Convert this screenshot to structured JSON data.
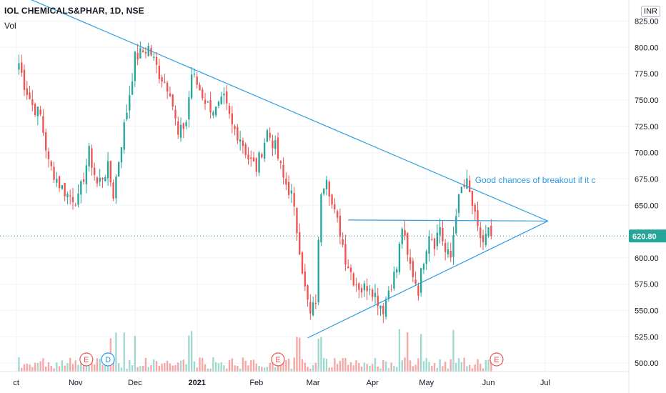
{
  "header": {
    "symbol": "IOL CHEMICALS&PHAR, 1D, NSE",
    "volume_label": "Vol",
    "currency": "INR"
  },
  "colors": {
    "up": "#26a69a",
    "down": "#ef5350",
    "up_volume": "#9fd9cf",
    "down_volume": "#f6a7a4",
    "trendline": "#2f9ce3",
    "price_line": "#26a69a",
    "axis_text": "#131722",
    "grid": "#f0f3fa",
    "badge_dividend": "#2196f3",
    "badge_earnings": "#ef5350"
  },
  "annotation": {
    "text": "Good chances of breakout if it c"
  },
  "last_price": {
    "label": "620.80",
    "value": 620.8
  },
  "chart_data": {
    "type": "candlestick",
    "y_range": [
      492,
      845
    ],
    "x_range_bars": [
      -7,
      226
    ],
    "y_ticks": [
      {
        "value": 500,
        "label": "500.00"
      },
      {
        "value": 525,
        "label": "525.00"
      },
      {
        "value": 550,
        "label": "550.00"
      },
      {
        "value": 575,
        "label": "575.00"
      },
      {
        "value": 600,
        "label": "600.00"
      },
      {
        "value": 650,
        "label": "650.00"
      },
      {
        "value": 675,
        "label": "675.00"
      },
      {
        "value": 700,
        "label": "700.00"
      },
      {
        "value": 725,
        "label": "725.00"
      },
      {
        "value": 750,
        "label": "750.00"
      },
      {
        "value": 775,
        "label": "775.00"
      },
      {
        "value": 800,
        "label": "800.00"
      },
      {
        "value": 825,
        "label": "825.00"
      }
    ],
    "x_ticks": [
      {
        "bar": -1,
        "label": "ct"
      },
      {
        "bar": 21,
        "label": "Nov"
      },
      {
        "bar": 43,
        "label": "Dec"
      },
      {
        "bar": 66,
        "label": "2021"
      },
      {
        "bar": 88,
        "label": "Feb"
      },
      {
        "bar": 109,
        "label": "Mar"
      },
      {
        "bar": 131,
        "label": "Apr"
      },
      {
        "bar": 151,
        "label": "May"
      },
      {
        "bar": 174,
        "label": "Jun"
      },
      {
        "bar": 195,
        "label": "Jul"
      }
    ],
    "events": [
      {
        "bar": 25,
        "label": "E",
        "kind": "earnings"
      },
      {
        "bar": 33,
        "label": "D",
        "kind": "dividend"
      },
      {
        "bar": 96,
        "label": "E",
        "kind": "earnings"
      },
      {
        "bar": 177,
        "label": "E",
        "kind": "earnings"
      }
    ],
    "waypoints": [
      {
        "bar": 0,
        "price": 785
      },
      {
        "bar": 2,
        "price": 765
      },
      {
        "bar": 5,
        "price": 745
      },
      {
        "bar": 8,
        "price": 735
      },
      {
        "bar": 11,
        "price": 690
      },
      {
        "bar": 15,
        "price": 670
      },
      {
        "bar": 18,
        "price": 660
      },
      {
        "bar": 22,
        "price": 655
      },
      {
        "bar": 26,
        "price": 700
      },
      {
        "bar": 29,
        "price": 670
      },
      {
        "bar": 33,
        "price": 685
      },
      {
        "bar": 35,
        "price": 660
      },
      {
        "bar": 38,
        "price": 710
      },
      {
        "bar": 40,
        "price": 740
      },
      {
        "bar": 43,
        "price": 790
      },
      {
        "bar": 48,
        "price": 800
      },
      {
        "bar": 52,
        "price": 775
      },
      {
        "bar": 56,
        "price": 760
      },
      {
        "bar": 59,
        "price": 715
      },
      {
        "bar": 62,
        "price": 730
      },
      {
        "bar": 64,
        "price": 775
      },
      {
        "bar": 67,
        "price": 760
      },
      {
        "bar": 70,
        "price": 745
      },
      {
        "bar": 73,
        "price": 740
      },
      {
        "bar": 76,
        "price": 750
      },
      {
        "bar": 79,
        "price": 725
      },
      {
        "bar": 82,
        "price": 715
      },
      {
        "bar": 85,
        "price": 695
      },
      {
        "bar": 88,
        "price": 685
      },
      {
        "bar": 92,
        "price": 720
      },
      {
        "bar": 95,
        "price": 705
      },
      {
        "bar": 98,
        "price": 675
      },
      {
        "bar": 101,
        "price": 660
      },
      {
        "bar": 104,
        "price": 610
      },
      {
        "bar": 106,
        "price": 570
      },
      {
        "bar": 108,
        "price": 545
      },
      {
        "bar": 110,
        "price": 560
      },
      {
        "bar": 112,
        "price": 665
      },
      {
        "bar": 114,
        "price": 680
      },
      {
        "bar": 116,
        "price": 650
      },
      {
        "bar": 119,
        "price": 625
      },
      {
        "bar": 121,
        "price": 600
      },
      {
        "bar": 124,
        "price": 580
      },
      {
        "bar": 127,
        "price": 570
      },
      {
        "bar": 130,
        "price": 575
      },
      {
        "bar": 133,
        "price": 560
      },
      {
        "bar": 135,
        "price": 552
      },
      {
        "bar": 137,
        "price": 570
      },
      {
        "bar": 140,
        "price": 590
      },
      {
        "bar": 142,
        "price": 630
      },
      {
        "bar": 144,
        "price": 600
      },
      {
        "bar": 146,
        "price": 585
      },
      {
        "bar": 148,
        "price": 570
      },
      {
        "bar": 150,
        "price": 600
      },
      {
        "bar": 152,
        "price": 625
      },
      {
        "bar": 154,
        "price": 615
      },
      {
        "bar": 156,
        "price": 630
      },
      {
        "bar": 158,
        "price": 605
      },
      {
        "bar": 160,
        "price": 600
      },
      {
        "bar": 162,
        "price": 645
      },
      {
        "bar": 164,
        "price": 665
      },
      {
        "bar": 166,
        "price": 670
      },
      {
        "bar": 168,
        "price": 650
      },
      {
        "bar": 170,
        "price": 625
      },
      {
        "bar": 172,
        "price": 615
      },
      {
        "bar": 174,
        "price": 625
      },
      {
        "bar": 175,
        "price": 620.8
      }
    ],
    "trendlines": [
      {
        "name": "upper-trendline",
        "from": {
          "bar": -7,
          "price": 858
        },
        "to": {
          "bar": 196,
          "price": 635
        }
      },
      {
        "name": "lower-trendline",
        "from": {
          "bar": 107,
          "price": 524
        },
        "to": {
          "bar": 196,
          "price": 635
        }
      },
      {
        "name": "horizontal-resistance",
        "from": {
          "bar": 122,
          "price": 636
        },
        "to": {
          "bar": 196,
          "price": 635
        }
      }
    ]
  }
}
